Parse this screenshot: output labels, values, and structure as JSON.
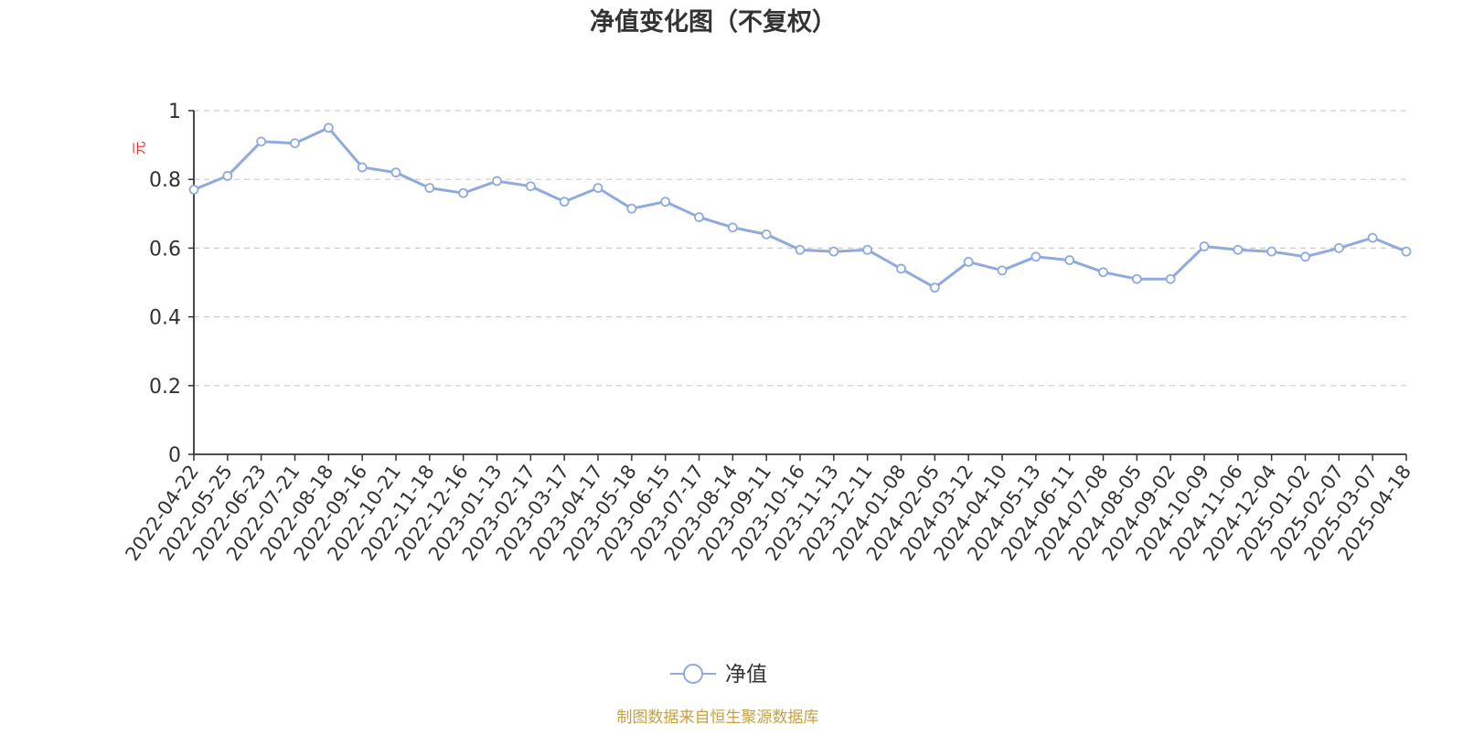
{
  "chart_data": {
    "type": "line",
    "title": "净值变化图（不复权）",
    "ylabel": "元",
    "ylim": [
      0,
      1
    ],
    "yticks": [
      "0",
      "0.2",
      "0.4",
      "0.6",
      "0.8",
      "1"
    ],
    "grid": true,
    "legend_position": "bottom-center",
    "source": "制图数据来自恒生聚源数据库",
    "colors": {
      "series": "#8faadc",
      "title": "#333333",
      "axis": "#333333",
      "grid": "#cccccc",
      "ylabel": "#e03030",
      "source": "#c8a040"
    },
    "x": [
      "2022-04-22",
      "2022-05-25",
      "2022-06-23",
      "2022-07-21",
      "2022-08-18",
      "2022-09-16",
      "2022-10-21",
      "2022-11-18",
      "2022-12-16",
      "2023-01-13",
      "2023-02-17",
      "2023-03-17",
      "2023-04-17",
      "2023-05-18",
      "2023-06-15",
      "2023-07-17",
      "2023-08-14",
      "2023-09-11",
      "2023-10-16",
      "2023-11-13",
      "2023-12-11",
      "2024-01-08",
      "2024-02-05",
      "2024-03-12",
      "2024-04-10",
      "2024-05-13",
      "2024-06-11",
      "2024-07-08",
      "2024-08-05",
      "2024-09-02",
      "2024-10-09",
      "2024-11-06",
      "2024-12-04",
      "2025-01-02",
      "2025-02-07",
      "2025-03-07",
      "2025-04-18"
    ],
    "series": [
      {
        "name": "净值",
        "values": [
          0.77,
          0.81,
          0.91,
          0.905,
          0.95,
          0.835,
          0.82,
          0.775,
          0.76,
          0.795,
          0.78,
          0.735,
          0.775,
          0.715,
          0.735,
          0.69,
          0.66,
          0.64,
          0.595,
          0.59,
          0.595,
          0.54,
          0.485,
          0.56,
          0.535,
          0.575,
          0.565,
          0.53,
          0.51,
          0.51,
          0.605,
          0.595,
          0.59,
          0.575,
          0.6,
          0.63,
          0.59
        ]
      }
    ]
  }
}
